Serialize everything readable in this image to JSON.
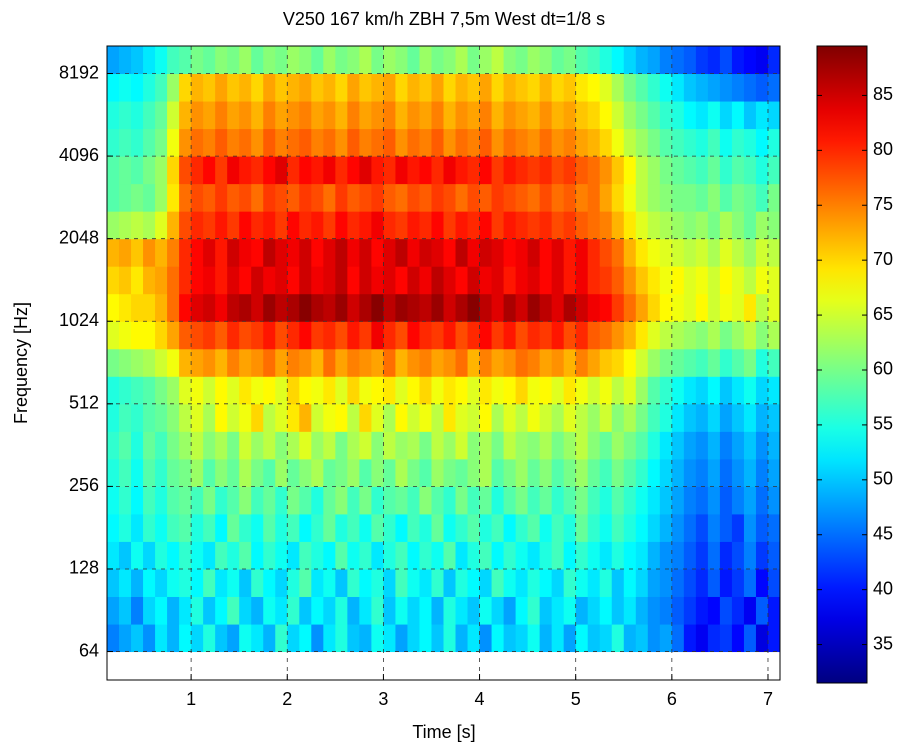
{
  "chart_data": {
    "type": "heatmap",
    "title": "V250 167 km/h ZBH 7,5m West dt=1/8 s",
    "x_label": "Time [s]",
    "y_label": "Frequency [Hz]",
    "xlim": [
      0.125,
      7.125
    ],
    "xticks": [
      1,
      2,
      3,
      4,
      5,
      6,
      7
    ],
    "ylim": [
      50.4,
      10321
    ],
    "yticks": [
      64,
      128,
      256,
      512,
      1024,
      2048,
      4096,
      8192
    ],
    "y_scale": "log2",
    "grid": true,
    "colormap": "jet",
    "clim": [
      31.5,
      89.5
    ],
    "cticks": [
      35,
      40,
      45,
      50,
      55,
      60,
      65,
      70,
      75,
      80,
      85
    ],
    "xbins": [
      0.125,
      0.25,
      0.375,
      0.5,
      0.625,
      0.75,
      0.875,
      1,
      1.125,
      1.25,
      1.375,
      1.5,
      1.625,
      1.75,
      1.875,
      2,
      2.125,
      2.25,
      2.375,
      2.5,
      2.625,
      2.75,
      2.875,
      3,
      3.125,
      3.25,
      3.375,
      3.5,
      3.625,
      3.75,
      3.875,
      4,
      4.125,
      4.25,
      4.375,
      4.5,
      4.625,
      4.75,
      4.875,
      5,
      5.125,
      5.25,
      5.375,
      5.5,
      5.625,
      5.75,
      5.875,
      6,
      6.125,
      6.25,
      6.375,
      6.5,
      6.625,
      6.75,
      6.875,
      7,
      7.125
    ],
    "ybins": [
      64,
      80.6,
      101.6,
      128,
      161.3,
      203.2,
      256,
      322.5,
      406.4,
      512,
      645.1,
      812.7,
      1024,
      1290.2,
      1625.5,
      2048,
      2580.3,
      3251,
      4096,
      5160.6,
      6502,
      8192,
      10321
    ],
    "z": [
      [
        46,
        48,
        50,
        47,
        52,
        49,
        53,
        51,
        55,
        50,
        48,
        54,
        52,
        49,
        56,
        51,
        53,
        47,
        52,
        55,
        50,
        49,
        54,
        52,
        48,
        51,
        53,
        50,
        55,
        49,
        52,
        47,
        53,
        50,
        51,
        54,
        49,
        52,
        48,
        53,
        50,
        51,
        55,
        49,
        50,
        47,
        48,
        45,
        40,
        38,
        41,
        42,
        39,
        44,
        37,
        40
      ],
      [
        48,
        50,
        46,
        51,
        53,
        49,
        52,
        55,
        50,
        53,
        57,
        51,
        49,
        54,
        52,
        56,
        50,
        53,
        51,
        55,
        49,
        52,
        56,
        50,
        54,
        51,
        53,
        49,
        55,
        52,
        50,
        54,
        51,
        48,
        53,
        56,
        50,
        52,
        54,
        49,
        51,
        53,
        50,
        52,
        49,
        47,
        46,
        44,
        42,
        40,
        39,
        43,
        41,
        38,
        44,
        40
      ],
      [
        50,
        52,
        49,
        53,
        51,
        54,
        55,
        53,
        57,
        52,
        54,
        50,
        56,
        53,
        51,
        55,
        58,
        52,
        54,
        50,
        56,
        53,
        55,
        51,
        57,
        54,
        52,
        56,
        50,
        55,
        53,
        51,
        57,
        54,
        52,
        55,
        53,
        51,
        56,
        54,
        52,
        55,
        50,
        53,
        51,
        48,
        47,
        45,
        43,
        41,
        44,
        40,
        42,
        45,
        39,
        43
      ],
      [
        52,
        50,
        54,
        51,
        55,
        53,
        56,
        54,
        52,
        57,
        55,
        58,
        53,
        56,
        54,
        52,
        57,
        55,
        53,
        58,
        54,
        56,
        52,
        55,
        57,
        53,
        56,
        54,
        58,
        52,
        55,
        57,
        53,
        56,
        54,
        52,
        55,
        57,
        53,
        56,
        54,
        52,
        55,
        53,
        52,
        49,
        47,
        46,
        44,
        42,
        45,
        41,
        43,
        46,
        42,
        44
      ],
      [
        53,
        55,
        52,
        56,
        54,
        57,
        58,
        55,
        57,
        53,
        59,
        56,
        54,
        58,
        55,
        57,
        53,
        56,
        59,
        55,
        57,
        54,
        58,
        56,
        53,
        57,
        55,
        59,
        54,
        56,
        58,
        55,
        57,
        53,
        56,
        58,
        54,
        57,
        55,
        59,
        56,
        54,
        57,
        55,
        53,
        51,
        49,
        47,
        45,
        43,
        46,
        44,
        42,
        47,
        44,
        45
      ],
      [
        54,
        56,
        53,
        57,
        55,
        58,
        59,
        57,
        60,
        56,
        58,
        61,
        57,
        59,
        56,
        60,
        58,
        55,
        59,
        61,
        57,
        60,
        56,
        58,
        59,
        57,
        61,
        58,
        56,
        60,
        57,
        59,
        55,
        58,
        60,
        57,
        59,
        56,
        58,
        60,
        57,
        55,
        58,
        56,
        54,
        52,
        50,
        48,
        46,
        45,
        47,
        44,
        46,
        48,
        45,
        47
      ],
      [
        55,
        57,
        54,
        58,
        56,
        59,
        60,
        62,
        58,
        61,
        59,
        63,
        60,
        58,
        62,
        59,
        61,
        63,
        59,
        60,
        62,
        58,
        61,
        59,
        63,
        60,
        58,
        62,
        60,
        59,
        61,
        63,
        58,
        60,
        62,
        59,
        61,
        58,
        60,
        62,
        59,
        57,
        60,
        58,
        56,
        53,
        51,
        49,
        47,
        46,
        48,
        45,
        47,
        49,
        46,
        48
      ],
      [
        56,
        58,
        55,
        59,
        57,
        60,
        62,
        64,
        61,
        63,
        60,
        65,
        62,
        64,
        61,
        63,
        66,
        62,
        64,
        60,
        63,
        65,
        61,
        64,
        62,
        63,
        60,
        64,
        62,
        65,
        61,
        63,
        60,
        64,
        62,
        61,
        63,
        60,
        62,
        64,
        61,
        59,
        62,
        60,
        58,
        55,
        52,
        50,
        48,
        47,
        49,
        46,
        48,
        50,
        47,
        49
      ],
      [
        55,
        57,
        56,
        58,
        59,
        61,
        64,
        66,
        63,
        68,
        65,
        67,
        70,
        64,
        66,
        69,
        72,
        65,
        67,
        68,
        64,
        70,
        66,
        63,
        68,
        65,
        67,
        64,
        69,
        66,
        65,
        68,
        63,
        66,
        64,
        67,
        65,
        63,
        66,
        64,
        62,
        65,
        61,
        63,
        60,
        57,
        55,
        52,
        50,
        49,
        51,
        48,
        50,
        52,
        49,
        50
      ],
      [
        55,
        56,
        57,
        58,
        60,
        62,
        66,
        67,
        65,
        68,
        66,
        69,
        67,
        68,
        66,
        70,
        68,
        67,
        69,
        66,
        70,
        67,
        68,
        69,
        66,
        68,
        70,
        67,
        69,
        68,
        66,
        69,
        67,
        68,
        70,
        67,
        68,
        66,
        69,
        67,
        65,
        67,
        64,
        66,
        62,
        58,
        56,
        54,
        52,
        51,
        53,
        50,
        52,
        54,
        51,
        52
      ],
      [
        60,
        61,
        62,
        63,
        65,
        67,
        72,
        73,
        74,
        72,
        75,
        73,
        74,
        76,
        73,
        75,
        74,
        72,
        76,
        73,
        75,
        74,
        73,
        76,
        72,
        74,
        75,
        73,
        74,
        76,
        72,
        75,
        73,
        74,
        76,
        75,
        73,
        74,
        72,
        75,
        73,
        71,
        70,
        68,
        65,
        62,
        60,
        59,
        58,
        57,
        59,
        56,
        58,
        60,
        55,
        57
      ],
      [
        66,
        67,
        68,
        68,
        70,
        73,
        77,
        78,
        79,
        77,
        80,
        78,
        79,
        81,
        78,
        80,
        82,
        79,
        80,
        78,
        81,
        79,
        83,
        80,
        78,
        82,
        80,
        79,
        81,
        78,
        80,
        82,
        79,
        81,
        78,
        80,
        79,
        81,
        78,
        80,
        77,
        76,
        74,
        72,
        69,
        66,
        64,
        63,
        62,
        61,
        63,
        60,
        62,
        64,
        61,
        63
      ],
      [
        68,
        69,
        70,
        70,
        72,
        76,
        82,
        84,
        85,
        83,
        86,
        87,
        85,
        88,
        86,
        87,
        89,
        87,
        86,
        88,
        85,
        87,
        89,
        86,
        88,
        87,
        86,
        88,
        85,
        87,
        89,
        86,
        84,
        87,
        85,
        88,
        86,
        84,
        87,
        85,
        83,
        82,
        79,
        76,
        73,
        70,
        68,
        67,
        66,
        68,
        65,
        67,
        66,
        69,
        64,
        66
      ],
      [
        70,
        71,
        69,
        72,
        73,
        76,
        80,
        82,
        83,
        81,
        84,
        82,
        85,
        83,
        84,
        82,
        85,
        83,
        84,
        86,
        82,
        85,
        83,
        84,
        82,
        85,
        83,
        86,
        84,
        82,
        85,
        83,
        84,
        81,
        83,
        84,
        82,
        84,
        81,
        83,
        80,
        79,
        77,
        74,
        71,
        69,
        67,
        68,
        66,
        67,
        65,
        68,
        66,
        64,
        67,
        66
      ],
      [
        72,
        73,
        71,
        74,
        72,
        75,
        80,
        82,
        84,
        81,
        85,
        83,
        82,
        86,
        84,
        83,
        85,
        82,
        84,
        86,
        83,
        85,
        82,
        84,
        86,
        83,
        85,
        84,
        82,
        86,
        83,
        85,
        84,
        82,
        83,
        85,
        82,
        84,
        81,
        83,
        80,
        78,
        76,
        72,
        69,
        67,
        66,
        65,
        64,
        65,
        63,
        66,
        64,
        62,
        65,
        64
      ],
      [
        62,
        63,
        64,
        63,
        66,
        72,
        78,
        80,
        79,
        81,
        79,
        82,
        80,
        81,
        79,
        82,
        80,
        81,
        79,
        82,
        80,
        81,
        83,
        80,
        79,
        81,
        80,
        82,
        79,
        81,
        80,
        82,
        79,
        81,
        80,
        79,
        80,
        78,
        79,
        77,
        76,
        75,
        72,
        69,
        66,
        64,
        63,
        62,
        61,
        62,
        60,
        63,
        61,
        59,
        62,
        61
      ],
      [
        58,
        59,
        60,
        59,
        62,
        69,
        76,
        78,
        77,
        79,
        77,
        78,
        76,
        79,
        78,
        77,
        79,
        78,
        76,
        79,
        77,
        78,
        79,
        77,
        76,
        78,
        77,
        79,
        78,
        76,
        78,
        77,
        79,
        78,
        77,
        76,
        78,
        76,
        77,
        75,
        76,
        73,
        70,
        67,
        64,
        62,
        61,
        60,
        60,
        59,
        61,
        58,
        60,
        59,
        57,
        60
      ],
      [
        58,
        59,
        58,
        60,
        62,
        70,
        78,
        80,
        82,
        79,
        83,
        81,
        80,
        82,
        84,
        80,
        82,
        81,
        83,
        80,
        82,
        84,
        81,
        80,
        83,
        81,
        82,
        80,
        83,
        81,
        80,
        82,
        79,
        81,
        80,
        79,
        80,
        78,
        79,
        77,
        76,
        74,
        71,
        68,
        64,
        62,
        60,
        59,
        58,
        57,
        59,
        56,
        58,
        57,
        55,
        57
      ],
      [
        56,
        57,
        56,
        58,
        60,
        67,
        74,
        76,
        75,
        77,
        75,
        76,
        74,
        77,
        75,
        76,
        77,
        75,
        76,
        74,
        77,
        75,
        76,
        77,
        74,
        76,
        75,
        77,
        74,
        76,
        75,
        77,
        74,
        76,
        75,
        74,
        76,
        74,
        75,
        73,
        72,
        70,
        67,
        64,
        62,
        60,
        58,
        57,
        56,
        55,
        57,
        54,
        56,
        55,
        53,
        55
      ],
      [
        55,
        56,
        55,
        57,
        59,
        65,
        72,
        74,
        73,
        75,
        73,
        74,
        72,
        75,
        73,
        74,
        75,
        73,
        74,
        72,
        75,
        73,
        74,
        75,
        72,
        74,
        73,
        75,
        72,
        74,
        73,
        75,
        72,
        74,
        73,
        72,
        74,
        72,
        73,
        71,
        70,
        68,
        65,
        62,
        60,
        58,
        56,
        55,
        53,
        52,
        54,
        51,
        53,
        50,
        52,
        51
      ],
      [
        53,
        54,
        53,
        55,
        57,
        62,
        70,
        72,
        71,
        73,
        71,
        72,
        70,
        73,
        71,
        72,
        73,
        71,
        72,
        70,
        73,
        71,
        72,
        73,
        70,
        72,
        71,
        73,
        70,
        72,
        71,
        73,
        70,
        72,
        71,
        70,
        72,
        70,
        71,
        69,
        68,
        66,
        63,
        60,
        58,
        56,
        54,
        52,
        50,
        49,
        48,
        47,
        46,
        45,
        44,
        45
      ],
      [
        48,
        49,
        50,
        52,
        54,
        57,
        58,
        60,
        59,
        61,
        60,
        62,
        59,
        61,
        60,
        62,
        61,
        59,
        62,
        60,
        61,
        63,
        60,
        62,
        61,
        59,
        62,
        60,
        61,
        63,
        60,
        62,
        64,
        61,
        60,
        62,
        61,
        59,
        60,
        58,
        57,
        55,
        53,
        51,
        49,
        48,
        46,
        45,
        44,
        42,
        41,
        43,
        40,
        39,
        38,
        41
      ]
    ]
  }
}
